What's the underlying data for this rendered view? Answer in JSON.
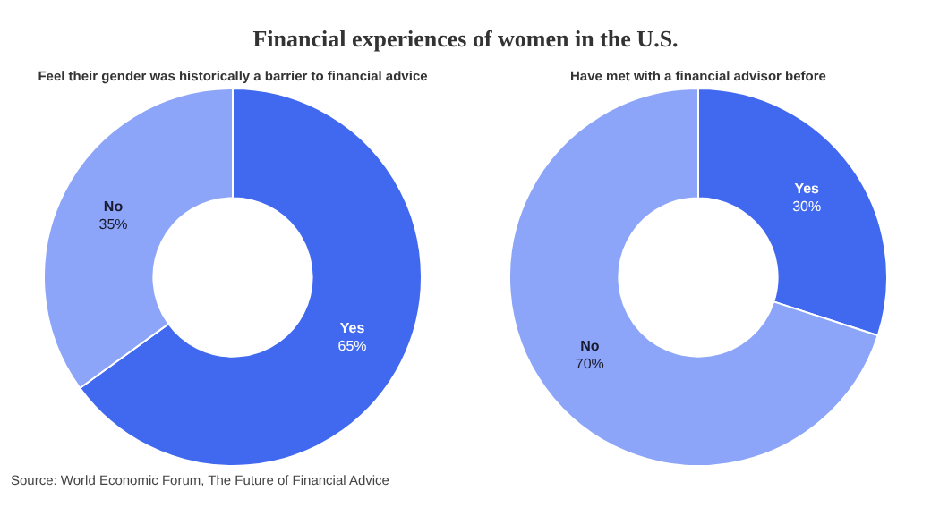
{
  "chart_data": [
    {
      "type": "donut",
      "title": "Financial experiences of women in the U.S.",
      "subtitle": "Feel their gender was historically a barrier to financial advice",
      "categories": [
        "Yes",
        "No"
      ],
      "values": [
        65,
        35
      ],
      "value_labels": [
        "65%",
        "35%"
      ],
      "colors": [
        "#4169f0",
        "#8ca5f8"
      ],
      "annotations": [
        "Source: World Economic Forum, The Future of Financial Advice"
      ]
    },
    {
      "type": "donut",
      "subtitle": "Have met with a financial advisor before",
      "categories": [
        "Yes",
        "No"
      ],
      "values": [
        30,
        70
      ],
      "value_labels": [
        "30%",
        "70%"
      ],
      "colors": [
        "#4169f0",
        "#8ca5f8"
      ]
    }
  ]
}
